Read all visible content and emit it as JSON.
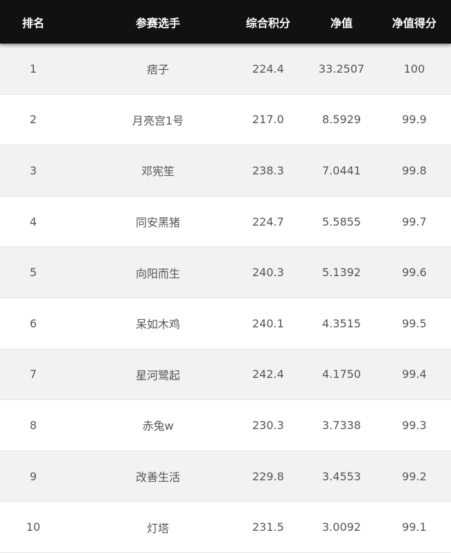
{
  "table": {
    "header": [
      "排名",
      "参赛选手",
      "综合积分",
      "净值",
      "净值得分"
    ],
    "rows": [
      [
        "1",
        "痞子",
        "224.4",
        "33.2507",
        "100"
      ],
      [
        "2",
        "月亮宫1号",
        "217.0",
        "8.5929",
        "99.9"
      ],
      [
        "3",
        "邓宪笙",
        "238.3",
        "7.0441",
        "99.8"
      ],
      [
        "4",
        "同安黑猪",
        "224.7",
        "5.5855",
        "99.7"
      ],
      [
        "5",
        "向阳而生",
        "240.3",
        "5.1392",
        "99.6"
      ],
      [
        "6",
        "呆如木鸡",
        "240.1",
        "4.3515",
        "99.5"
      ],
      [
        "7",
        "星河鹭起",
        "242.4",
        "4.1750",
        "99.4"
      ],
      [
        "8",
        "赤兔w",
        "230.3",
        "3.7338",
        "99.3"
      ],
      [
        "9",
        "改善生活",
        "229.8",
        "3.4553",
        "99.2"
      ],
      [
        "10",
        "灯塔",
        "231.5",
        "3.0092",
        "99.1"
      ]
    ]
  }
}
